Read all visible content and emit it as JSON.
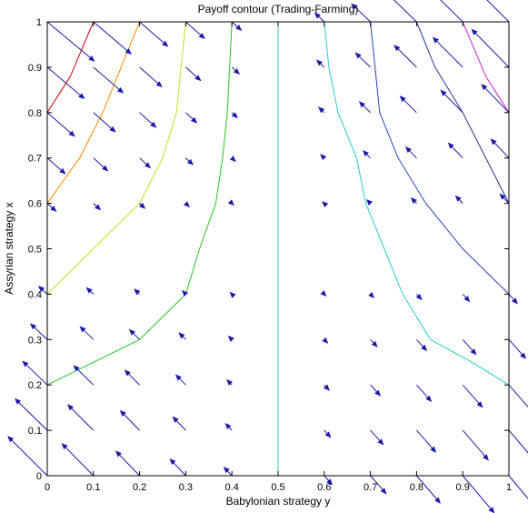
{
  "chart_data": {
    "type": "contour+quiver",
    "title": "Payoff contour (Trading-Farming)",
    "xlabel": "Babylonian strategy y",
    "ylabel": "Assyrian strategy x",
    "xlim": [
      0,
      1
    ],
    "ylim": [
      0,
      1
    ],
    "xticks": [
      0,
      0.1,
      0.2,
      0.3,
      0.4,
      0.5,
      0.6,
      0.7,
      0.8,
      0.9,
      1
    ],
    "yticks": [
      0,
      0.1,
      0.2,
      0.3,
      0.4,
      0.5,
      0.6,
      0.7,
      0.8,
      0.9,
      1
    ],
    "xtick_labels": [
      "0",
      "0.1",
      "0.2",
      "0.3",
      "0.4",
      "0.5",
      "0.6",
      "0.7",
      "0.8",
      "0.9",
      "1"
    ],
    "ytick_labels": [
      "0",
      "0.1",
      "0.2",
      "0.3",
      "0.4",
      "0.5",
      "0.6",
      "0.7",
      "0.8",
      "0.9",
      "1"
    ],
    "grid": false,
    "box": true,
    "contour_color_list": [
      "#cc0000",
      "#ff8800",
      "#b5e61d",
      "#22c522",
      "#22cccc",
      "#2244bb",
      "#223399",
      "#cc22cc"
    ],
    "contours": [
      {
        "color": "#cc0000",
        "points": [
          [
            0,
            0.8
          ],
          [
            0.05,
            0.88
          ],
          [
            0.1,
            1.0
          ]
        ]
      },
      {
        "color": "#ff8800",
        "points": [
          [
            0,
            0.6
          ],
          [
            0.07,
            0.7
          ],
          [
            0.12,
            0.8
          ],
          [
            0.16,
            0.9
          ],
          [
            0.2,
            1.0
          ]
        ]
      },
      {
        "color": "#b5e61d",
        "points": [
          [
            0,
            0.4
          ],
          [
            0.1,
            0.5
          ],
          [
            0.2,
            0.6
          ],
          [
            0.25,
            0.7
          ],
          [
            0.28,
            0.8
          ],
          [
            0.29,
            0.9
          ],
          [
            0.3,
            1.0
          ]
        ]
      },
      {
        "color": "#22c522",
        "points": [
          [
            0,
            0.2
          ],
          [
            0.1,
            0.25
          ],
          [
            0.2,
            0.3
          ],
          [
            0.3,
            0.4
          ],
          [
            0.33,
            0.5
          ],
          [
            0.365,
            0.6
          ],
          [
            0.38,
            0.7
          ],
          [
            0.39,
            0.8
          ],
          [
            0.395,
            0.9
          ],
          [
            0.4,
            1.0
          ]
        ]
      },
      {
        "color": "#22cccc",
        "points": [
          [
            0.5,
            0.0
          ],
          [
            0.5,
            1.0
          ]
        ]
      },
      {
        "color": "#22cccc",
        "points": [
          [
            0.6,
            1.0
          ],
          [
            0.61,
            0.9
          ],
          [
            0.63,
            0.8
          ],
          [
            0.67,
            0.7
          ],
          [
            0.69,
            0.6
          ],
          [
            0.73,
            0.5
          ],
          [
            0.77,
            0.4
          ],
          [
            0.83,
            0.3
          ],
          [
            0.92,
            0.25
          ],
          [
            1.0,
            0.2
          ]
        ]
      },
      {
        "color": "#2244bb",
        "points": [
          [
            0.7,
            1.0
          ],
          [
            0.71,
            0.9
          ],
          [
            0.72,
            0.8
          ],
          [
            0.76,
            0.7
          ],
          [
            0.82,
            0.6
          ],
          [
            0.9,
            0.5
          ],
          [
            1.0,
            0.4
          ]
        ]
      },
      {
        "color": "#223399",
        "points": [
          [
            0.8,
            1.0
          ],
          [
            0.84,
            0.9
          ],
          [
            0.9,
            0.8
          ],
          [
            1.0,
            0.6
          ]
        ]
      },
      {
        "color": "#cc22cc",
        "points": [
          [
            0.9,
            1.0
          ],
          [
            0.95,
            0.88
          ],
          [
            1.0,
            0.8
          ]
        ]
      }
    ],
    "arrow_color": "#1a1aaa",
    "vector_field": {
      "grid_x": [
        0,
        0.1,
        0.2,
        0.3,
        0.4,
        0.5,
        0.6,
        0.7,
        0.8,
        0.9,
        1.0
      ],
      "grid_y": [
        0,
        0.1,
        0.2,
        0.3,
        0.4,
        0.5,
        0.6,
        0.7,
        0.8,
        0.9,
        1.0
      ],
      "scale": 0.9
    }
  }
}
